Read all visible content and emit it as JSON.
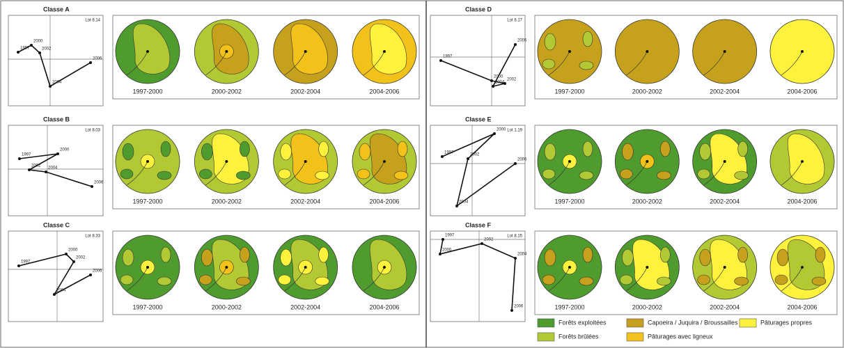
{
  "classes": [
    {
      "title": "Classe A",
      "lot": "Lot 8.14",
      "years": [
        "1997",
        "2000",
        "2002",
        "2004",
        "2006"
      ],
      "periods": [
        "1997-2000",
        "2000-2002",
        "2002-2004",
        "2004-2006"
      ]
    },
    {
      "title": "Classe B",
      "lot": "Lot 8.03",
      "years": [
        "1997",
        "2000",
        "2002",
        "2004",
        "2006"
      ],
      "periods": [
        "1997-2000",
        "2000-2002",
        "2002-2004",
        "2004-2006"
      ]
    },
    {
      "title": "Classe C",
      "lot": "Lot 8.33",
      "years": [
        "1997",
        "2000",
        "2002",
        "2004",
        "2006"
      ],
      "periods": [
        "1997-2000",
        "2000-2002",
        "2002-2004",
        "2004-2006"
      ]
    },
    {
      "title": "Classe D",
      "lot": "Lot 8.17",
      "years": [
        "1997",
        "2000",
        "2002",
        "2004",
        "2006"
      ],
      "periods": [
        "1997-2000",
        "2000-2002",
        "2002-2004",
        "2004-2006"
      ]
    },
    {
      "title": "Classe E",
      "lot": "Lot 1.19",
      "years": [
        "1997",
        "2000",
        "2002",
        "2004",
        "2006"
      ],
      "periods": [
        "1997-2000",
        "2000-2002",
        "2002-2004",
        "2004-2006"
      ]
    },
    {
      "title": "Classe F",
      "lot": "Lot 8.15",
      "years": [
        "1997",
        "2000",
        "2002",
        "2004",
        "2006"
      ],
      "periods": [
        "1997-2000",
        "2000-2002",
        "2002-2004",
        "2004-2006"
      ]
    }
  ],
  "legend": [
    {
      "label": "Forêts exploitées",
      "color": "#4f9b2e"
    },
    {
      "label": "Forêts brûlées",
      "color": "#b3c934"
    },
    {
      "label": "Capoeira / Juquira / Broussailles",
      "color": "#c6a11c"
    },
    {
      "label": "Pâturages avec ligneux",
      "color": "#f3c21a"
    },
    {
      "label": "Pâturages propres",
      "color": "#fff23c"
    }
  ]
}
